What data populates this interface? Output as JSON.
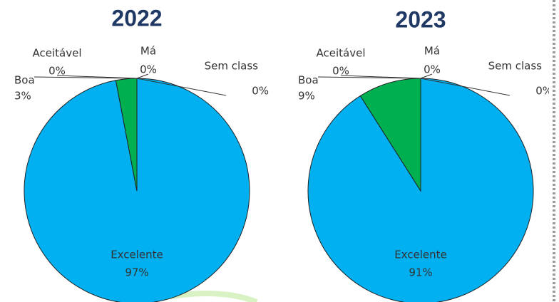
{
  "chart_data": [
    {
      "type": "pie",
      "title": "2022",
      "categories": [
        "Excelente",
        "Boa",
        "Aceitável",
        "Má",
        "Sem class"
      ],
      "values": [
        97,
        3,
        0,
        0,
        0
      ],
      "value_labels": [
        "97%",
        "3%",
        "0%",
        "0%",
        "0%"
      ],
      "colors": [
        "#00b0f0",
        "#00b050",
        "#a5a5a5",
        "#ffc000",
        "#5b9bd5"
      ]
    },
    {
      "type": "pie",
      "title": "2023",
      "categories": [
        "Excelente",
        "Boa",
        "Aceitável",
        "Má",
        "Sem class"
      ],
      "values": [
        91,
        9,
        0,
        0,
        0
      ],
      "value_labels": [
        "91%",
        "9%",
        "0%",
        "0%",
        "0%"
      ],
      "colors": [
        "#00b0f0",
        "#00b050",
        "#a5a5a5",
        "#ffc000",
        "#5b9bd5"
      ]
    }
  ]
}
